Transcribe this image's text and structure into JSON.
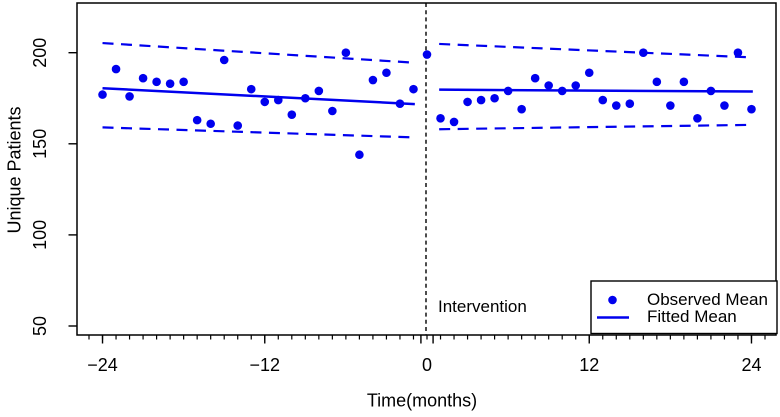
{
  "figure": {
    "background": "#ffffff",
    "axis_color": "#000000",
    "series_color": "#0000ee",
    "intervention_line_color": "#000000"
  },
  "chart_data": {
    "type": "scatter",
    "title": "",
    "xlabel": "Time(months)",
    "ylabel": "Unique Patients",
    "xlim": [
      -25.9,
      25.8
    ],
    "ylim": [
      45,
      227
    ],
    "grid": false,
    "legend_position": "bottom-right",
    "x_minor_tick_range": [
      -25,
      25
    ],
    "x_minor_tick_step": 1,
    "x_ticks": [
      {
        "month": -24,
        "label": "−24",
        "tick": true
      },
      {
        "month": -12,
        "label": "−12",
        "tick": true
      },
      {
        "month": -0.45,
        "label": "",
        "tick": true
      },
      {
        "month": 0,
        "label": "0",
        "tick": false
      },
      {
        "month": 0.45,
        "label": "",
        "tick": true
      },
      {
        "month": 12,
        "label": "12",
        "tick": true
      },
      {
        "month": 24,
        "label": "24",
        "tick": true
      }
    ],
    "y_ticks": [
      {
        "value": 50,
        "label": "50"
      },
      {
        "value": 100,
        "label": "100"
      },
      {
        "value": 150,
        "label": "150"
      },
      {
        "value": 200,
        "label": "200"
      }
    ],
    "intervention_month": 0,
    "annotations": {
      "intervention_label": "Intervention"
    },
    "observed": {
      "name": "Observed Mean",
      "x": [
        -24,
        -23,
        -22,
        -21,
        -20,
        -19,
        -18,
        -17,
        -16,
        -15,
        -14,
        -13,
        -12,
        -11,
        -10,
        -9,
        -8,
        -7,
        -6,
        -5,
        -4,
        -3,
        -2,
        -1,
        0,
        1,
        2,
        3,
        4,
        5,
        6,
        7,
        8,
        9,
        10,
        11,
        12,
        13,
        14,
        15,
        16,
        17,
        18,
        19,
        20,
        21,
        22,
        23,
        24
      ],
      "y": [
        177,
        191,
        176,
        186,
        184,
        183,
        184,
        163,
        161,
        196,
        160,
        180,
        173,
        174,
        166,
        175,
        179,
        168,
        200,
        144,
        185,
        189,
        172,
        180,
        199,
        164,
        162,
        173,
        174,
        175,
        179,
        169,
        186,
        182,
        179,
        182,
        189,
        174,
        171,
        172,
        200,
        184,
        171,
        184,
        164,
        179,
        171,
        200,
        169
      ]
    },
    "fitted_segments": [
      {
        "period": "pre",
        "name": "Fitted Mean (pre)",
        "x": [
          -24,
          -0.9
        ],
        "fit": [
          180.5,
          171.8
        ],
        "upper": [
          205.3,
          194.5
        ],
        "lower": [
          159.0,
          153.5
        ]
      },
      {
        "period": "post",
        "name": "Fitted Mean (post)",
        "x": [
          0.9,
          24.1
        ],
        "fit": [
          179.7,
          178.7
        ],
        "upper": [
          204.8,
          197.4
        ],
        "lower": [
          158.0,
          160.4
        ]
      }
    ]
  },
  "legend": {
    "items": [
      {
        "label": "Observed Mean",
        "marker": "point"
      },
      {
        "label": "Fitted Mean",
        "marker": "line"
      }
    ]
  }
}
